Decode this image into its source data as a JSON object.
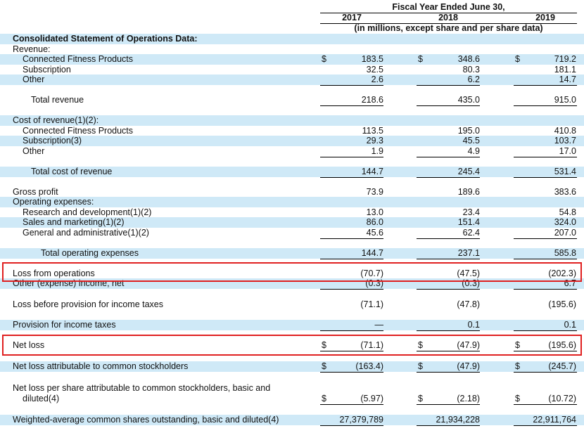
{
  "header": {
    "title": "Fiscal Year Ended June 30,",
    "years": [
      "2017",
      "2018",
      "2019"
    ],
    "note": "(in millions, except share and per share data)"
  },
  "rows": [
    {
      "label": "Consolidated Statement of Operations Data:",
      "values": [
        "",
        "",
        ""
      ]
    },
    {
      "label": "Revenue:",
      "values": [
        "",
        "",
        ""
      ]
    },
    {
      "label": "Connected Fitness Products",
      "dollar": "$",
      "values": [
        "183.5",
        "348.6",
        "719.2"
      ]
    },
    {
      "label": "Subscription",
      "values": [
        "32.5",
        "80.3",
        "181.1"
      ]
    },
    {
      "label": "Other",
      "values": [
        "2.6",
        "6.2",
        "14.7"
      ]
    },
    {
      "label": "Total revenue",
      "values": [
        "218.6",
        "435.0",
        "915.0"
      ]
    },
    {
      "label": "Cost of revenue(1)(2):",
      "values": [
        "",
        "",
        ""
      ]
    },
    {
      "label": "Connected Fitness Products",
      "values": [
        "113.5",
        "195.0",
        "410.8"
      ]
    },
    {
      "label": "Subscription(3)",
      "values": [
        "29.3",
        "45.5",
        "103.7"
      ]
    },
    {
      "label": "Other",
      "values": [
        "1.9",
        "4.9",
        "17.0"
      ]
    },
    {
      "label": "Total cost of revenue",
      "values": [
        "144.7",
        "245.4",
        "531.4"
      ]
    },
    {
      "label": "Gross profit",
      "values": [
        "73.9",
        "189.6",
        "383.6"
      ]
    },
    {
      "label": "Operating expenses:",
      "values": [
        "",
        "",
        ""
      ]
    },
    {
      "label": "Research and development(1)(2)",
      "values": [
        "13.0",
        "23.4",
        "54.8"
      ]
    },
    {
      "label": "Sales and marketing(1)(2)",
      "values": [
        "86.0",
        "151.4",
        "324.0"
      ]
    },
    {
      "label": "General and administrative(1)(2)",
      "values": [
        "45.6",
        "62.4",
        "207.0"
      ]
    },
    {
      "label": "Total operating expenses",
      "values": [
        "144.7",
        "237.1",
        "585.8"
      ]
    },
    {
      "label": "Loss from operations",
      "values": [
        "(70.7)",
        "(47.5)",
        "(202.3)"
      ]
    },
    {
      "label": "Other (expense) income, net",
      "values": [
        "(0.3)",
        "(0.3)",
        "6.7"
      ]
    },
    {
      "label": "Loss before provision for income taxes",
      "values": [
        "(71.1)",
        "(47.8)",
        "(195.6)"
      ]
    },
    {
      "label": "Provision for income taxes",
      "values": [
        "—",
        "0.1",
        "0.1"
      ]
    },
    {
      "label": "Net loss",
      "dollar": "$",
      "values": [
        "(71.1)",
        "(47.9)",
        "(195.6)"
      ]
    },
    {
      "label": "Net loss attributable to common stockholders",
      "dollar": "$",
      "values": [
        "(163.4)",
        "(47.9)",
        "(245.7)"
      ]
    },
    {
      "label": "Net loss per share attributable to common stockholders, basic and",
      "values": [
        "",
        "",
        ""
      ]
    },
    {
      "label": "diluted(4)",
      "dollar": "$",
      "values": [
        "(5.97)",
        "(2.18)",
        "(10.72)"
      ]
    },
    {
      "label": "Weighted-average common shares outstanding, basic and diluted(4)",
      "values": [
        "27,379,789",
        "21,934,228",
        "22,911,764"
      ]
    }
  ]
}
